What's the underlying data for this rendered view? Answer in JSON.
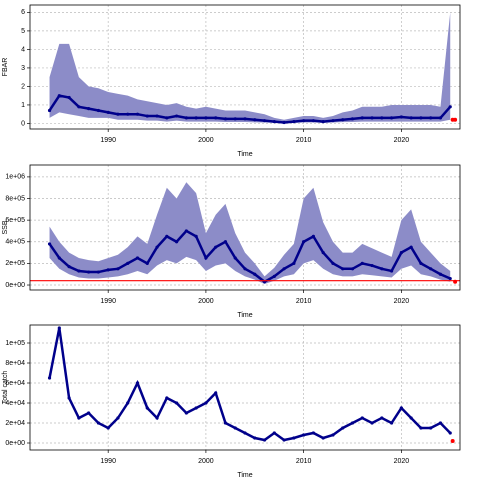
{
  "chart_data": [
    {
      "type": "line",
      "ylabel": "FBAR",
      "xlabel": "Time",
      "xlim": [
        1982,
        2026
      ],
      "xticks": [
        1990,
        2000,
        2010,
        2020
      ],
      "ylim": [
        -0.3,
        6.4
      ],
      "yticks": [
        0,
        1,
        2,
        3,
        4,
        5,
        6
      ],
      "grid": true,
      "x": [
        1984,
        1985,
        1986,
        1987,
        1988,
        1989,
        1990,
        1991,
        1992,
        1993,
        1994,
        1995,
        1996,
        1997,
        1998,
        1999,
        2000,
        2001,
        2002,
        2003,
        2004,
        2005,
        2006,
        2007,
        2008,
        2009,
        2010,
        2011,
        2012,
        2013,
        2014,
        2015,
        2016,
        2017,
        2018,
        2019,
        2020,
        2021,
        2022,
        2023,
        2024,
        2025
      ],
      "series": [
        {
          "color": "#00008b",
          "band_color": "#8c8cc8",
          "values": [
            0.7,
            1.5,
            1.4,
            0.9,
            0.8,
            0.7,
            0.6,
            0.5,
            0.5,
            0.5,
            0.4,
            0.4,
            0.3,
            0.4,
            0.3,
            0.3,
            0.3,
            0.3,
            0.25,
            0.25,
            0.25,
            0.2,
            0.15,
            0.1,
            0.05,
            0.1,
            0.15,
            0.15,
            0.1,
            0.15,
            0.2,
            0.25,
            0.3,
            0.3,
            0.3,
            0.3,
            0.35,
            0.3,
            0.3,
            0.3,
            0.3,
            0.9
          ],
          "upper": [
            2.5,
            4.3,
            4.3,
            2.5,
            2,
            1.9,
            1.7,
            1.6,
            1.5,
            1.3,
            1.2,
            1.1,
            1.0,
            1.1,
            0.9,
            0.8,
            0.9,
            0.8,
            0.7,
            0.7,
            0.7,
            0.6,
            0.5,
            0.3,
            0.2,
            0.3,
            0.4,
            0.4,
            0.3,
            0.4,
            0.6,
            0.7,
            0.9,
            0.9,
            0.9,
            1,
            1,
            1,
            1,
            1,
            0.9,
            6
          ],
          "lower": [
            0.3,
            0.6,
            0.5,
            0.4,
            0.3,
            0.3,
            0.3,
            0.2,
            0.2,
            0.2,
            0.15,
            0.15,
            0.1,
            0.15,
            0.1,
            0.1,
            0.1,
            0.1,
            0.08,
            0.08,
            0.08,
            0.06,
            0.05,
            0.03,
            0.02,
            0.03,
            0.05,
            0.05,
            0.03,
            0.05,
            0.07,
            0.08,
            0.1,
            0.1,
            0.1,
            0.1,
            0.1,
            0.1,
            0.1,
            0.1,
            0.1,
            0.2
          ]
        }
      ],
      "forecast": {
        "color": "#ff0000",
        "x": [
          2025.25,
          2025.5
        ],
        "values": [
          0.2,
          0.2
        ]
      }
    },
    {
      "type": "line",
      "ylabel": "SSB",
      "xlabel": "Time",
      "xlim": [
        1982,
        2026
      ],
      "xticks": [
        1990,
        2000,
        2010,
        2020
      ],
      "ylim": [
        -46000,
        1110000
      ],
      "yticks": [
        {
          "value": 0,
          "label": "0e+00"
        },
        {
          "value": 200000,
          "label": "2e+05"
        },
        {
          "value": 400000,
          "label": "4e+05"
        },
        {
          "value": 600000,
          "label": "6e+05"
        },
        {
          "value": 800000,
          "label": "8e+05"
        },
        {
          "value": 1000000,
          "label": "1e+06"
        }
      ],
      "grid": true,
      "x": [
        1984,
        1985,
        1986,
        1987,
        1988,
        1989,
        1990,
        1991,
        1992,
        1993,
        1994,
        1995,
        1996,
        1997,
        1998,
        1999,
        2000,
        2001,
        2002,
        2003,
        2004,
        2005,
        2006,
        2007,
        2008,
        2009,
        2010,
        2011,
        2012,
        2013,
        2014,
        2015,
        2016,
        2017,
        2018,
        2019,
        2020,
        2021,
        2022,
        2023,
        2024,
        2025
      ],
      "series": [
        {
          "color": "#00008b",
          "band_color": "#8c8cc8",
          "values": [
            380000,
            250000,
            170000,
            130000,
            120000,
            120000,
            140000,
            150000,
            200000,
            250000,
            200000,
            350000,
            450000,
            400000,
            500000,
            450000,
            250000,
            350000,
            400000,
            250000,
            150000,
            100000,
            30000,
            80000,
            150000,
            200000,
            400000,
            450000,
            300000,
            200000,
            150000,
            150000,
            200000,
            180000,
            150000,
            130000,
            300000,
            350000,
            200000,
            150000,
            100000,
            60000
          ],
          "upper": [
            540000,
            400000,
            300000,
            250000,
            230000,
            220000,
            250000,
            280000,
            350000,
            450000,
            380000,
            650000,
            900000,
            800000,
            950000,
            850000,
            480000,
            650000,
            750000,
            480000,
            300000,
            200000,
            80000,
            160000,
            280000,
            380000,
            800000,
            900000,
            580000,
            400000,
            300000,
            300000,
            380000,
            340000,
            300000,
            260000,
            600000,
            700000,
            400000,
            300000,
            200000,
            130000
          ],
          "lower": [
            250000,
            150000,
            100000,
            70000,
            60000,
            60000,
            70000,
            80000,
            100000,
            130000,
            100000,
            180000,
            230000,
            200000,
            260000,
            230000,
            130000,
            180000,
            200000,
            130000,
            80000,
            50000,
            10000,
            40000,
            80000,
            100000,
            200000,
            230000,
            150000,
            100000,
            80000,
            80000,
            100000,
            90000,
            80000,
            70000,
            150000,
            180000,
            100000,
            80000,
            50000,
            30000
          ]
        }
      ],
      "hline": {
        "value": 40000,
        "color": "#ff0000"
      },
      "forecast": {
        "color": "#ff0000",
        "x": [
          2025.5
        ],
        "values": [
          30000
        ]
      }
    },
    {
      "type": "line",
      "ylabel": "Total catch",
      "xlabel": "Time",
      "xlim": [
        1982,
        2026
      ],
      "xticks": [
        1990,
        2000,
        2010,
        2020
      ],
      "ylim": [
        -7000,
        118000
      ],
      "yticks": [
        {
          "value": 0,
          "label": "0e+00"
        },
        {
          "value": 20000,
          "label": "2e+04"
        },
        {
          "value": 40000,
          "label": "4e+04"
        },
        {
          "value": 60000,
          "label": "6e+04"
        },
        {
          "value": 80000,
          "label": "8e+04"
        },
        {
          "value": 100000,
          "label": "1e+05"
        }
      ],
      "grid": true,
      "x": [
        1984,
        1985,
        1986,
        1987,
        1988,
        1989,
        1990,
        1991,
        1992,
        1993,
        1994,
        1995,
        1996,
        1997,
        1998,
        1999,
        2000,
        2001,
        2002,
        2003,
        2004,
        2005,
        2006,
        2007,
        2008,
        2009,
        2010,
        2011,
        2012,
        2013,
        2014,
        2015,
        2016,
        2017,
        2018,
        2019,
        2020,
        2021,
        2022,
        2023,
        2024,
        2025
      ],
      "series": [
        {
          "color": "#00008b",
          "values": [
            65000,
            115000,
            45000,
            25000,
            30000,
            20000,
            15000,
            25000,
            40000,
            60000,
            35000,
            25000,
            45000,
            40000,
            30000,
            35000,
            40000,
            50000,
            20000,
            15000,
            10000,
            5000,
            3000,
            10000,
            3000,
            5000,
            8000,
            10000,
            5000,
            8000,
            15000,
            20000,
            25000,
            20000,
            25000,
            20000,
            35000,
            25000,
            15000,
            15000,
            20000,
            10000
          ]
        }
      ],
      "forecast": {
        "color": "#ff0000",
        "x": [
          2025.25
        ],
        "values": [
          2000
        ]
      }
    }
  ]
}
